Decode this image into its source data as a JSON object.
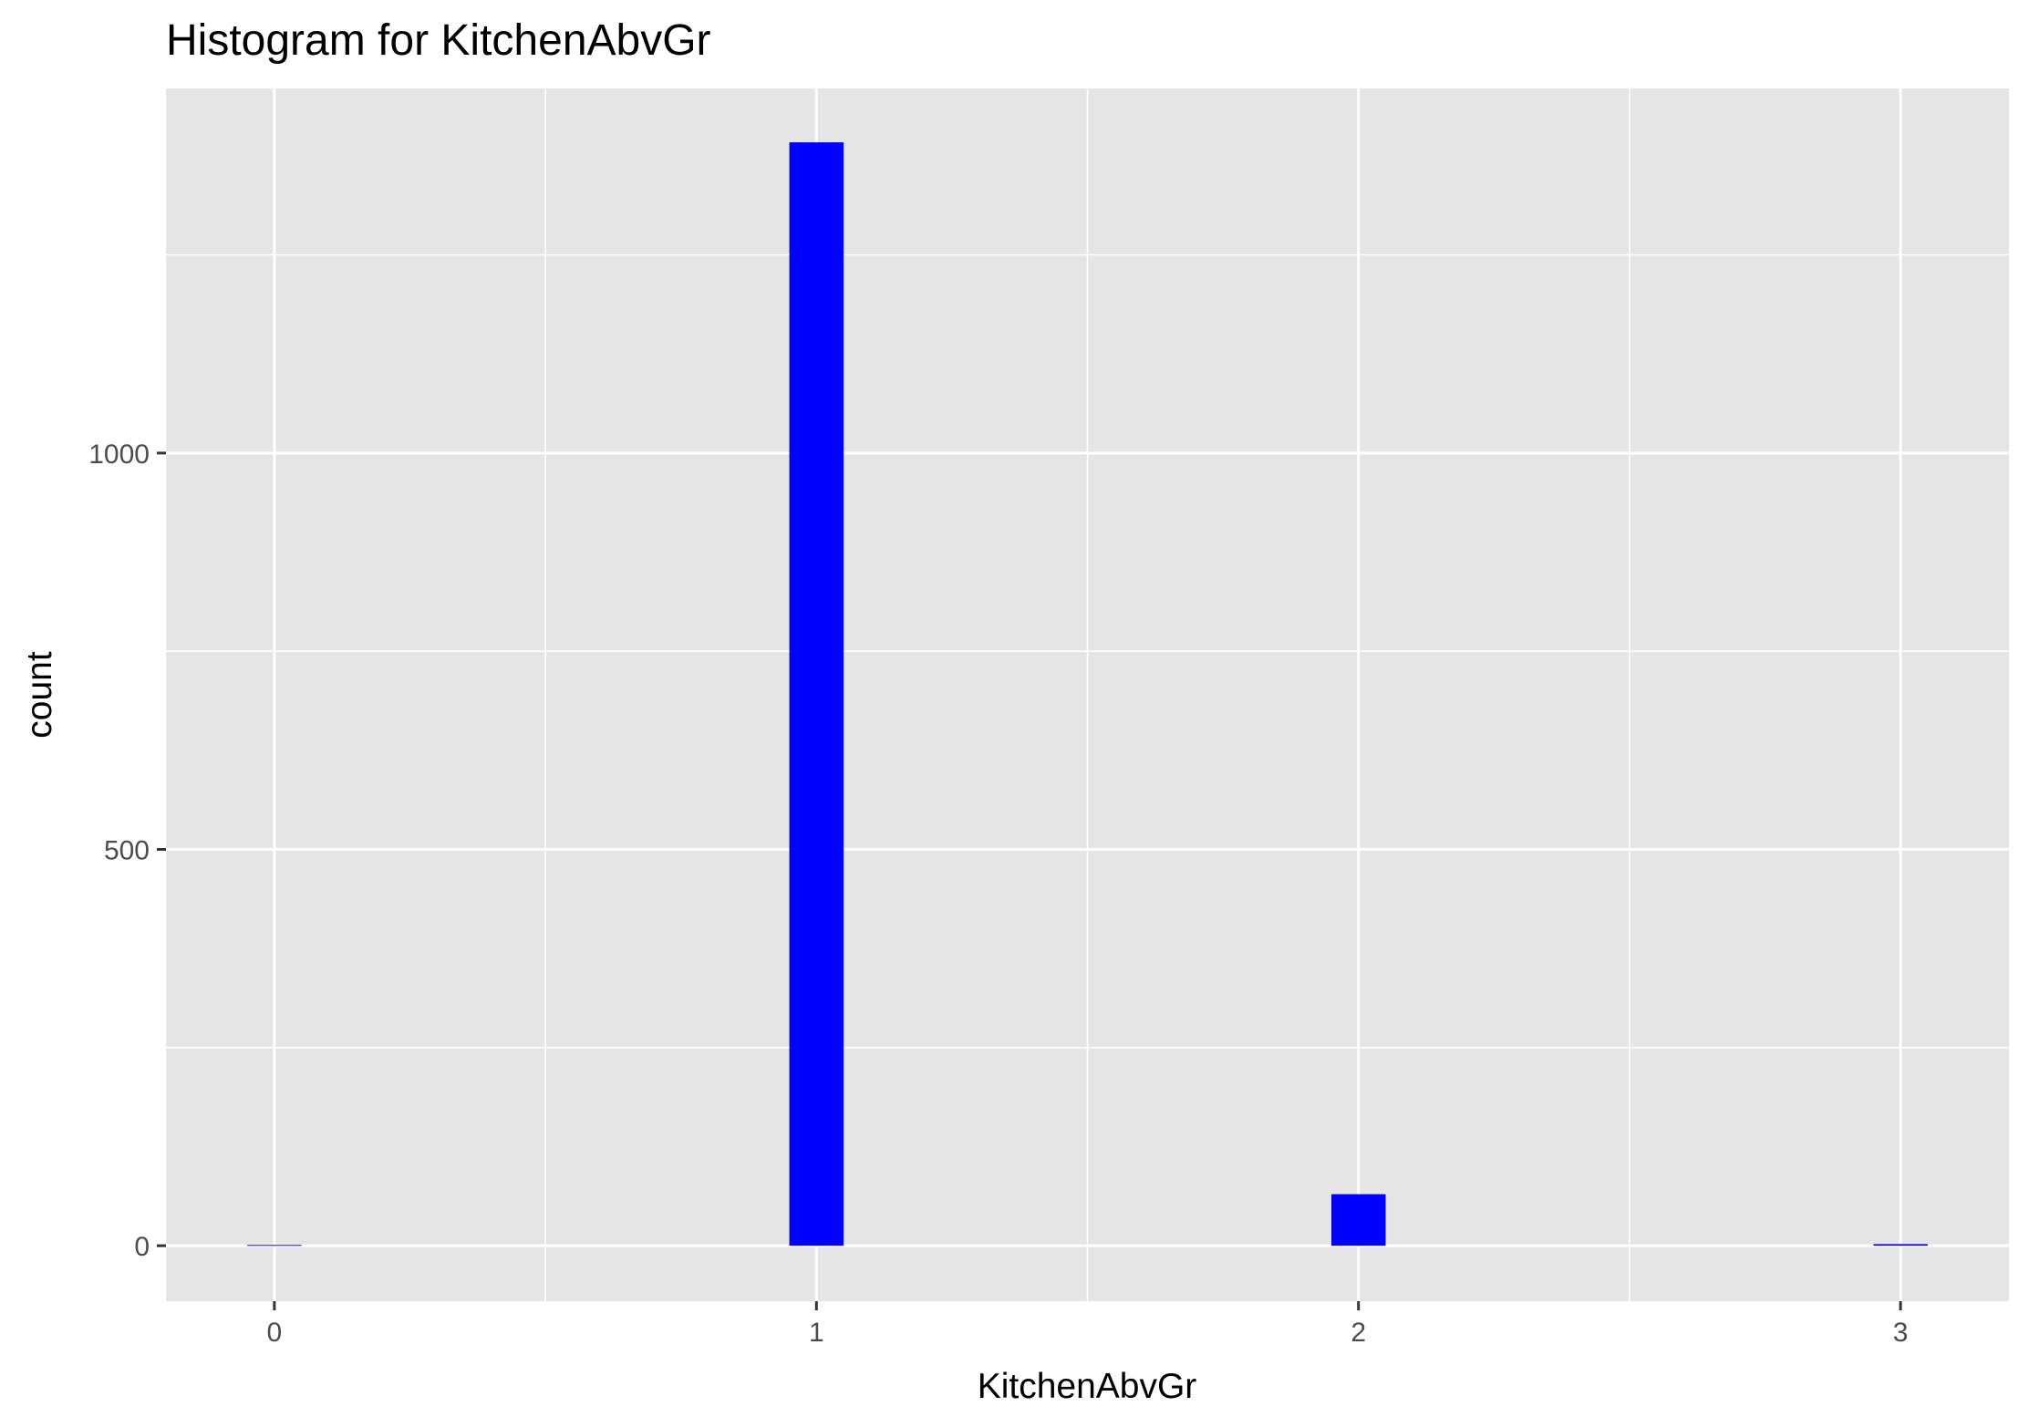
{
  "chart_data": {
    "type": "bar",
    "title": "Histogram for KitchenAbvGr",
    "xlabel": "KitchenAbvGr",
    "ylabel": "count",
    "x": [
      0,
      1,
      2,
      3
    ],
    "values": [
      1,
      1392,
      65,
      2
    ],
    "bin_width": 0.1,
    "xlim": [
      -0.2,
      3.2
    ],
    "ylim": [
      -70,
      1460
    ],
    "x_ticks": [
      0,
      1,
      2,
      3
    ],
    "x_tick_labels": [
      "0",
      "1",
      "2",
      "3"
    ],
    "y_ticks": [
      0,
      500,
      1000
    ],
    "y_tick_labels": [
      "0",
      "500",
      "1000"
    ],
    "bar_color": "#0000FF",
    "panel_color": "#E5E5E5",
    "grid": true
  }
}
